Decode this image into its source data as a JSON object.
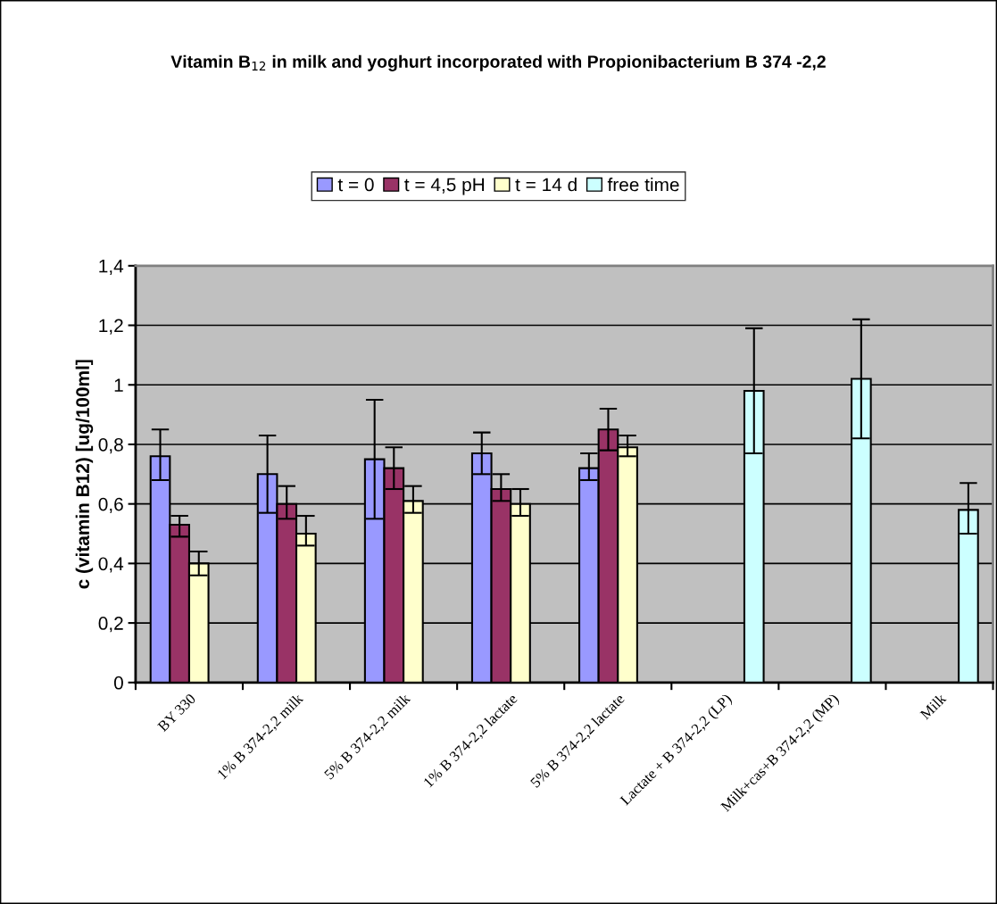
{
  "chart_data": {
    "type": "bar",
    "title": "Vitamin B$_{12}$ in milk and yoghurt incorporated with Propionibacterium B 374 -2,2",
    "ylabel": "c (vitamin B12) [ug/100ml]",
    "categories": [
      "BY 330",
      "1% B 374-2,2 milk",
      "5% B 374-2,2 milk",
      "1% B 374-2,2 lactate",
      "5% B 374-2,2 lactate",
      "Lactate + B 374-2,2 (LP)",
      "Milk+cas+B 374-2,2 (MP)",
      "Milk"
    ],
    "series": [
      {
        "name": "t = 0",
        "color": "#9999ff",
        "values": [
          0.76,
          0.7,
          0.75,
          0.77,
          0.72,
          null,
          null,
          null
        ],
        "errors": [
          [
            0.68,
            0.85
          ],
          [
            0.57,
            0.83
          ],
          [
            0.55,
            0.95
          ],
          [
            0.7,
            0.84
          ],
          [
            0.68,
            0.77
          ],
          null,
          null,
          null
        ]
      },
      {
        "name": "t = 4,5 pH",
        "color": "#993366",
        "values": [
          0.53,
          0.6,
          0.72,
          0.65,
          0.85,
          null,
          null,
          null
        ],
        "errors": [
          [
            0.49,
            0.56
          ],
          [
            0.55,
            0.66
          ],
          [
            0.65,
            0.79
          ],
          [
            0.61,
            0.7
          ],
          [
            0.78,
            0.92
          ],
          null,
          null,
          null
        ]
      },
      {
        "name": "t = 14 d",
        "color": "#ffffcc",
        "values": [
          0.4,
          0.5,
          0.61,
          0.6,
          0.79,
          null,
          null,
          null
        ],
        "errors": [
          [
            0.36,
            0.44
          ],
          [
            0.46,
            0.56
          ],
          [
            0.57,
            0.66
          ],
          [
            0.56,
            0.65
          ],
          [
            0.76,
            0.83
          ],
          null,
          null,
          null
        ]
      },
      {
        "name": "free time",
        "color": "#ccffff",
        "values": [
          null,
          null,
          null,
          null,
          null,
          0.98,
          1.02,
          0.58
        ],
        "errors": [
          null,
          null,
          null,
          null,
          null,
          [
            0.77,
            1.19
          ],
          [
            0.82,
            1.22
          ],
          [
            0.5,
            0.67
          ]
        ]
      }
    ],
    "ylim": [
      0,
      1.4
    ],
    "yticks": [
      0,
      {
        "value": 0.2,
        "label": "0,2"
      },
      {
        "value": 0.4,
        "label": "0,4"
      },
      {
        "value": 0.6,
        "label": "0,6"
      },
      {
        "value": 0.8,
        "label": "0,8"
      },
      1,
      {
        "value": 1.2,
        "label": "1,2"
      },
      {
        "value": 1.4,
        "label": "1,4"
      }
    ],
    "grid": "y",
    "legend": "top"
  }
}
